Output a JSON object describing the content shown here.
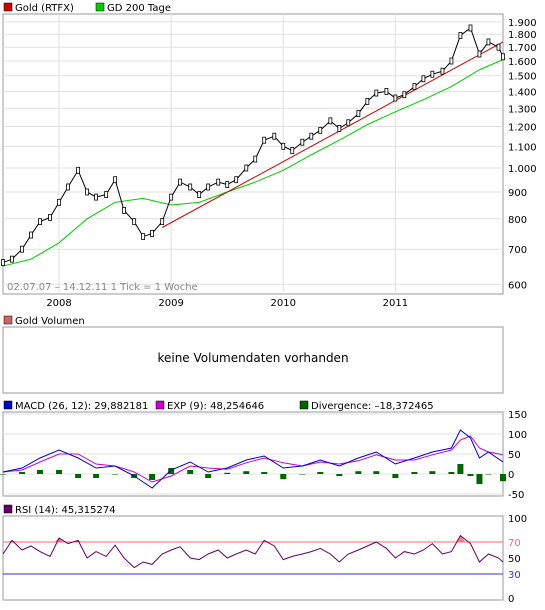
{
  "colors": {
    "price_candles": "#000000",
    "gd200": "#00cc00",
    "trendline": "#cc0000",
    "macd": "#0000cc",
    "exp": "#cc00cc",
    "divergence": "#006600",
    "rsi": "#660066",
    "rsi_upper_band": "#ff6666",
    "rsi_lower_band": "#3333cc",
    "legend_gold": "#cc0000",
    "legend_volume": "#cc6666",
    "grid": "#e0e0e0",
    "border": "#999999"
  },
  "chart_data": [
    {
      "type": "line",
      "panel": "price",
      "legend": [
        "Gold (RTFX)",
        "GD 200 Tage"
      ],
      "info_text": "02.07.07 – 14.12.11   1 Tick = 1 Woche",
      "yscale": "log",
      "ylim": [
        580,
        1950
      ],
      "y_ticks": [
        "1.900",
        "1.800",
        "1.700",
        "1.600",
        "1.500",
        "1.400",
        "1.300",
        "1.200",
        "1.100",
        "1.000",
        "900",
        "800",
        "700",
        "600"
      ],
      "y_tick_values": [
        1900,
        1800,
        1700,
        1600,
        1500,
        1400,
        1300,
        1200,
        1100,
        1000,
        900,
        800,
        700,
        600
      ],
      "x_ticks": [
        "2008",
        "2009",
        "2010",
        "2011"
      ],
      "x_tick_values": [
        2008.0,
        2009.0,
        2010.0,
        2011.0
      ],
      "xlim": [
        2007.5,
        2011.96
      ],
      "grid": true,
      "series": [
        {
          "name": "Gold (RTFX)",
          "x": [
            2007.5,
            2007.58,
            2007.67,
            2007.75,
            2007.83,
            2007.92,
            2008.0,
            2008.08,
            2008.17,
            2008.25,
            2008.33,
            2008.42,
            2008.5,
            2008.58,
            2008.67,
            2008.75,
            2008.83,
            2008.92,
            2009.0,
            2009.08,
            2009.17,
            2009.25,
            2009.33,
            2009.42,
            2009.5,
            2009.58,
            2009.67,
            2009.75,
            2009.83,
            2009.92,
            2010.0,
            2010.08,
            2010.17,
            2010.25,
            2010.33,
            2010.42,
            2010.5,
            2010.58,
            2010.67,
            2010.75,
            2010.83,
            2010.92,
            2011.0,
            2011.08,
            2011.17,
            2011.25,
            2011.33,
            2011.42,
            2011.5,
            2011.58,
            2011.67,
            2011.75,
            2011.83,
            2011.92,
            2011.96
          ],
          "values": [
            660,
            670,
            700,
            745,
            790,
            805,
            860,
            920,
            990,
            900,
            880,
            890,
            950,
            830,
            790,
            740,
            750,
            790,
            880,
            940,
            920,
            890,
            920,
            940,
            930,
            950,
            1000,
            1040,
            1130,
            1150,
            1100,
            1080,
            1120,
            1150,
            1180,
            1230,
            1190,
            1220,
            1270,
            1340,
            1390,
            1400,
            1360,
            1380,
            1430,
            1480,
            1510,
            1530,
            1600,
            1790,
            1850,
            1650,
            1740,
            1700,
            1630
          ]
        },
        {
          "name": "GD 200 Tage",
          "x": [
            2007.5,
            2007.75,
            2008.0,
            2008.25,
            2008.5,
            2008.75,
            2009.0,
            2009.25,
            2009.5,
            2009.75,
            2010.0,
            2010.25,
            2010.5,
            2010.75,
            2011.0,
            2011.25,
            2011.5,
            2011.75,
            2011.96
          ],
          "values": [
            650,
            670,
            720,
            800,
            860,
            875,
            850,
            860,
            900,
            940,
            990,
            1060,
            1130,
            1210,
            1280,
            1350,
            1430,
            1540,
            1610
          ]
        },
        {
          "name": "trendline",
          "x": [
            2008.92,
            2011.96
          ],
          "values": [
            770,
            1740
          ]
        }
      ]
    },
    {
      "type": "bar",
      "panel": "volume",
      "legend": [
        "Gold Volumen"
      ],
      "message": "keine Volumendaten vorhanden"
    },
    {
      "type": "line",
      "panel": "macd",
      "legend": [
        "MACD (26, 12): 29,882181",
        "EXP (9): 48,254646",
        "Divergence: –18,372465"
      ],
      "ylim": [
        -50,
        150
      ],
      "y_ticks": [
        "150",
        "100",
        "50",
        "0",
        "-50"
      ],
      "y_tick_values": [
        150,
        100,
        50,
        0,
        -50
      ],
      "xlim": [
        2007.5,
        2011.96
      ],
      "series": [
        {
          "name": "MACD",
          "x": [
            2007.5,
            2007.67,
            2007.83,
            2008.0,
            2008.17,
            2008.33,
            2008.5,
            2008.67,
            2008.83,
            2009.0,
            2009.17,
            2009.33,
            2009.5,
            2009.67,
            2009.83,
            2010.0,
            2010.17,
            2010.33,
            2010.5,
            2010.67,
            2010.83,
            2011.0,
            2011.17,
            2011.33,
            2011.5,
            2011.58,
            2011.67,
            2011.75,
            2011.83,
            2011.96
          ],
          "values": [
            5,
            15,
            40,
            60,
            40,
            15,
            20,
            -5,
            -35,
            10,
            30,
            5,
            15,
            35,
            45,
            15,
            20,
            35,
            20,
            40,
            55,
            25,
            40,
            55,
            65,
            110,
            90,
            40,
            55,
            30
          ]
        },
        {
          "name": "EXP",
          "x": [
            2007.5,
            2007.67,
            2007.83,
            2008.0,
            2008.17,
            2008.33,
            2008.5,
            2008.67,
            2008.83,
            2009.0,
            2009.17,
            2009.33,
            2009.5,
            2009.67,
            2009.83,
            2010.0,
            2010.17,
            2010.33,
            2010.5,
            2010.67,
            2010.83,
            2011.0,
            2011.17,
            2011.33,
            2011.5,
            2011.58,
            2011.67,
            2011.75,
            2011.83,
            2011.96
          ],
          "values": [
            5,
            10,
            30,
            50,
            50,
            25,
            20,
            5,
            -20,
            -5,
            20,
            15,
            12,
            28,
            40,
            28,
            20,
            30,
            25,
            33,
            48,
            35,
            35,
            48,
            60,
            85,
            95,
            65,
            55,
            48
          ]
        },
        {
          "name": "Divergence",
          "x": [
            2007.5,
            2007.67,
            2007.83,
            2008.0,
            2008.17,
            2008.33,
            2008.5,
            2008.67,
            2008.83,
            2009.0,
            2009.17,
            2009.33,
            2009.5,
            2009.67,
            2009.83,
            2010.0,
            2010.17,
            2010.33,
            2010.5,
            2010.67,
            2010.83,
            2011.0,
            2011.17,
            2011.33,
            2011.5,
            2011.58,
            2011.67,
            2011.75,
            2011.83,
            2011.96
          ],
          "values": [
            0,
            5,
            10,
            10,
            -10,
            -10,
            0,
            -10,
            -15,
            15,
            10,
            -10,
            3,
            7,
            5,
            -13,
            0,
            5,
            -5,
            7,
            7,
            -10,
            5,
            7,
            5,
            25,
            -5,
            -25,
            0,
            -18
          ]
        }
      ]
    },
    {
      "type": "line",
      "panel": "rsi",
      "legend": [
        "RSI (14): 45,315274"
      ],
      "ylim": [
        0,
        100
      ],
      "y_ticks": [
        "100",
        "70",
        "50",
        "30",
        "0"
      ],
      "y_tick_values": [
        100,
        70,
        50,
        30,
        0
      ],
      "bands": [
        70,
        30
      ],
      "xlim": [
        2007.5,
        2011.96
      ],
      "series": [
        {
          "name": "RSI",
          "x": [
            2007.5,
            2007.58,
            2007.67,
            2007.75,
            2007.83,
            2007.92,
            2008.0,
            2008.08,
            2008.17,
            2008.25,
            2008.33,
            2008.42,
            2008.5,
            2008.58,
            2008.67,
            2008.75,
            2008.83,
            2008.92,
            2009.0,
            2009.08,
            2009.17,
            2009.25,
            2009.33,
            2009.42,
            2009.5,
            2009.58,
            2009.67,
            2009.75,
            2009.83,
            2009.92,
            2010.0,
            2010.08,
            2010.17,
            2010.25,
            2010.33,
            2010.42,
            2010.5,
            2010.58,
            2010.67,
            2010.75,
            2010.83,
            2010.92,
            2011.0,
            2011.08,
            2011.17,
            2011.25,
            2011.33,
            2011.42,
            2011.5,
            2011.58,
            2011.67,
            2011.75,
            2011.83,
            2011.92,
            2011.96
          ],
          "values": [
            55,
            72,
            60,
            65,
            58,
            52,
            75,
            68,
            72,
            50,
            58,
            52,
            66,
            50,
            38,
            45,
            42,
            55,
            60,
            64,
            50,
            48,
            55,
            60,
            50,
            55,
            60,
            55,
            72,
            65,
            48,
            52,
            55,
            58,
            62,
            55,
            45,
            55,
            60,
            65,
            70,
            62,
            50,
            58,
            55,
            60,
            68,
            55,
            58,
            78,
            68,
            45,
            55,
            50,
            45
          ]
        }
      ]
    }
  ]
}
